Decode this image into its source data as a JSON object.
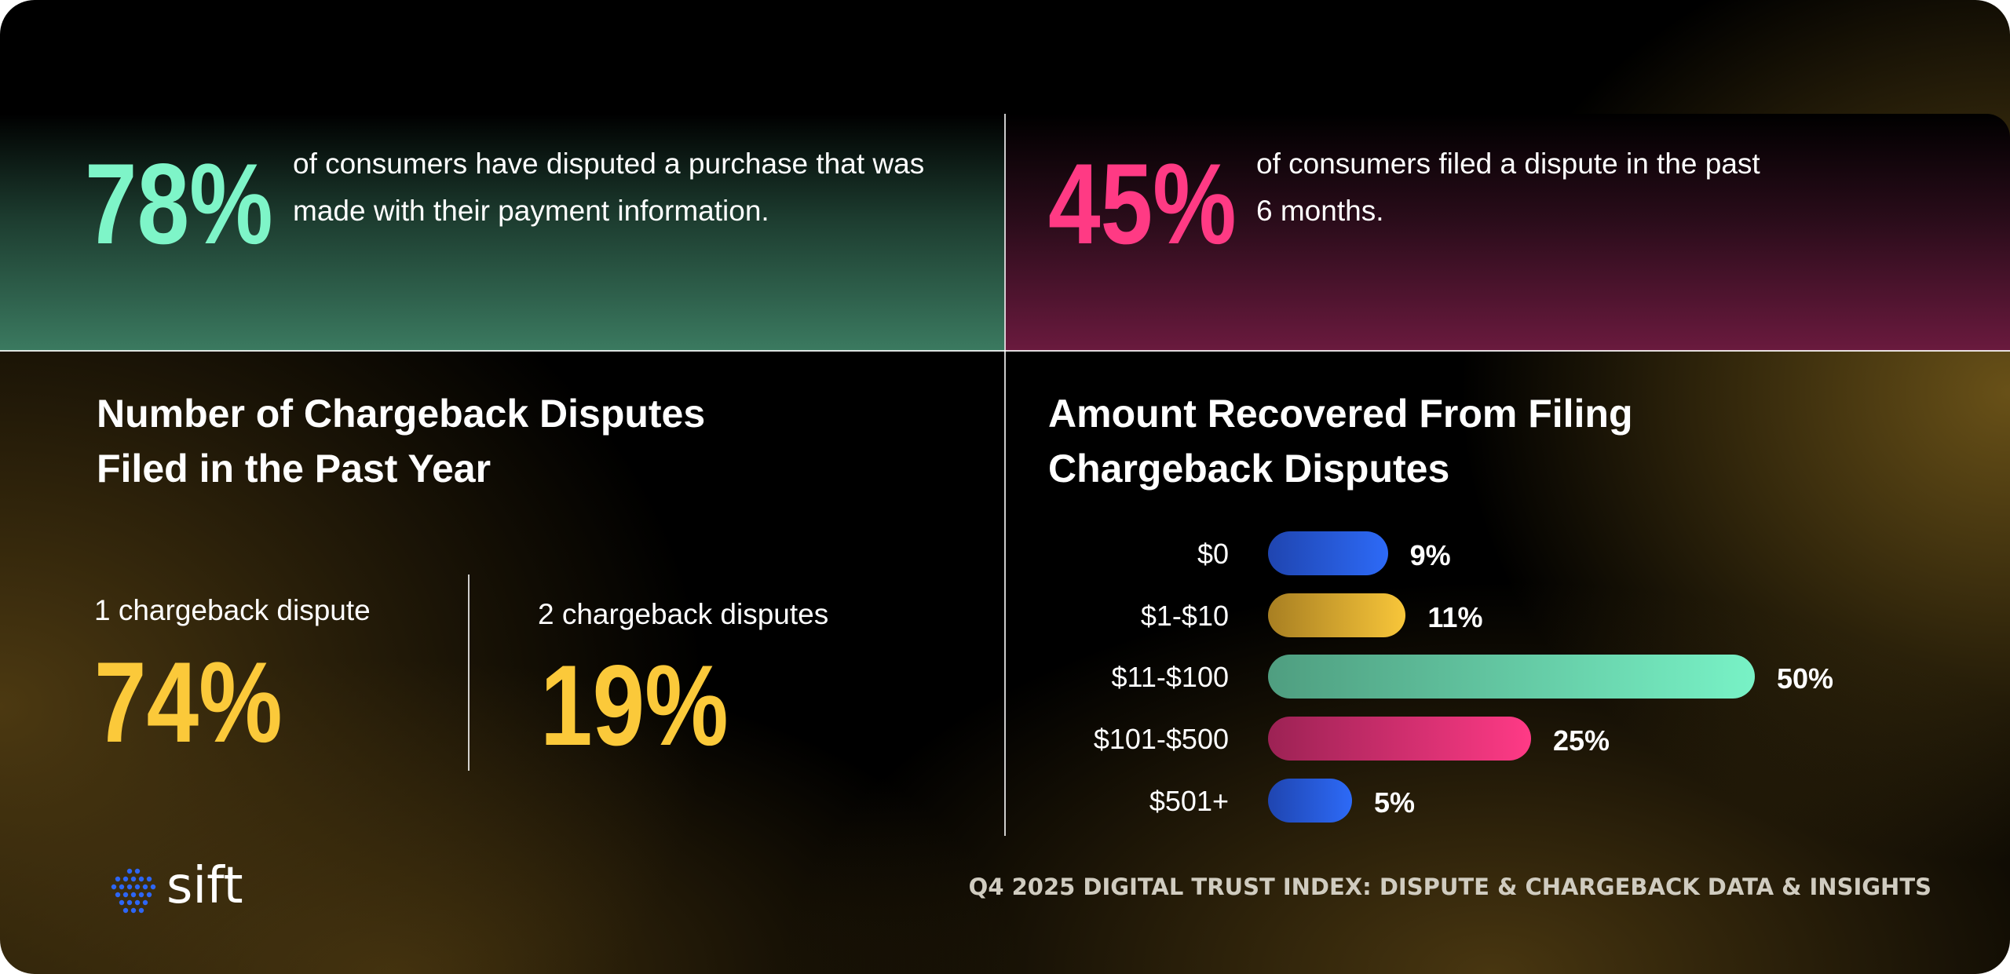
{
  "colors": {
    "green": "#7ef5c8",
    "pink": "#ff3a84",
    "yellow": "#fbc93a",
    "blue": "#2d66f5"
  },
  "stats_top": [
    {
      "value": "78%",
      "text": "of consumers have disputed a purchase that was made with their payment information."
    },
    {
      "value": "45%",
      "text": "of consumers filed a dispute in the past 6 months."
    }
  ],
  "left_section": {
    "heading": "Number of Chargeback Disputes Filed in the Past Year",
    "items": [
      {
        "label": "1 chargeback dispute",
        "value": "74%"
      },
      {
        "label": "2 chargeback disputes",
        "value": "19%"
      }
    ]
  },
  "chart_data": {
    "type": "bar",
    "orientation": "horizontal",
    "title": "Amount Recovered From Filing Chargeback Disputes",
    "categories": [
      "$0",
      "$1-$10",
      "$11-$100",
      "$101-$500",
      "$501+"
    ],
    "values": [
      9,
      11,
      50,
      25,
      5
    ],
    "value_labels": [
      "9%",
      "11%",
      "50%",
      "25%",
      "5%"
    ],
    "bar_colors": [
      [
        "#1f45b0",
        "#2d6af7"
      ],
      [
        "#a87f22",
        "#f8c63a"
      ],
      [
        "#4f9e80",
        "#78f2c6"
      ],
      [
        "#9c2254",
        "#ff3a86"
      ],
      [
        "#1f45b0",
        "#2d6af7"
      ]
    ]
  },
  "brand": {
    "logo": "sift",
    "icon": "sift-dot-sphere-icon"
  },
  "footer": "Q4 2025 DIGITAL TRUST INDEX: DISPUTE & CHARGEBACK DATA & INSIGHTS"
}
